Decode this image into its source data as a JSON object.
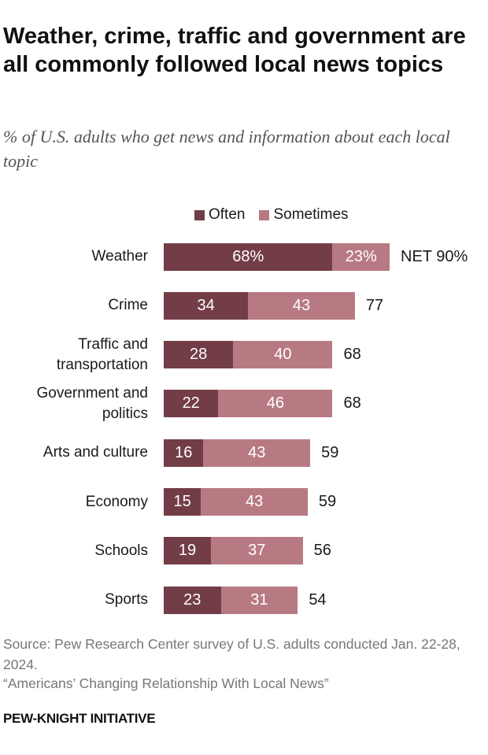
{
  "title": "Weather, crime, traffic and government are all commonly followed local news topics",
  "subtitle": "% of U.S. adults who get news and information about each local topic",
  "chart_data": {
    "type": "bar",
    "orientation": "horizontal",
    "stacked": true,
    "categories": [
      "Weather",
      "Crime",
      "Traffic and transportation",
      "Government and politics",
      "Arts and culture",
      "Economy",
      "Schools",
      "Sports"
    ],
    "series": [
      {
        "name": "Often",
        "color": "#733d47",
        "values": [
          68,
          34,
          28,
          22,
          16,
          15,
          19,
          23
        ],
        "labels": [
          "68%",
          "34",
          "28",
          "22",
          "16",
          "15",
          "19",
          "23"
        ]
      },
      {
        "name": "Sometimes",
        "color": "#b87a82",
        "values": [
          23,
          43,
          40,
          46,
          43,
          43,
          37,
          31
        ],
        "labels": [
          "23%",
          "43",
          "40",
          "46",
          "43",
          "43",
          "37",
          "31"
        ]
      }
    ],
    "net_labels": [
      "NET 90%",
      "77",
      "68",
      "68",
      "59",
      "59",
      "56",
      "54"
    ],
    "legend": "top",
    "grid": false
  },
  "source": "Source: Pew Research Center survey of U.S. adults conducted Jan. 22-28, 2024.",
  "report": "“Americans’ Changing Relationship With Local News”",
  "brand": "PEW-KNIGHT INITIATIVE"
}
